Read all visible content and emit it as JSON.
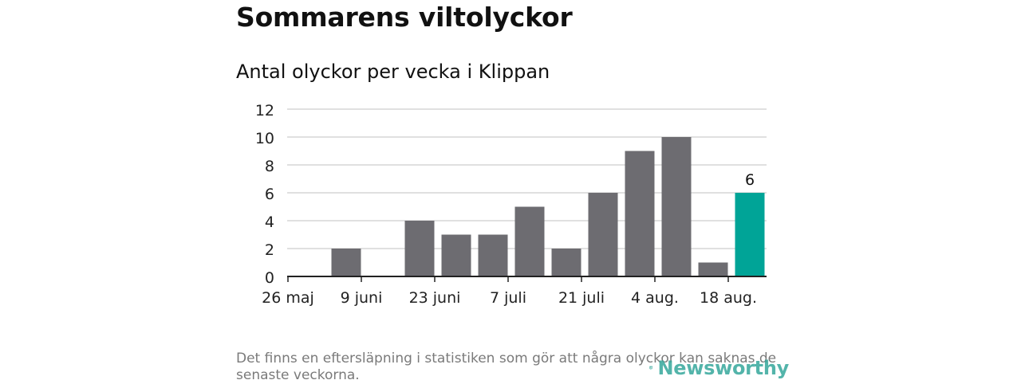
{
  "title": "Sommarens viltolyckor",
  "subtitle": "Antal olyckor per vecka i Klippan",
  "note": "Det finns en eftersläpning i statistiken som gör att några olyckor kan saknas de senaste veckorna.",
  "brand": "Newsworthy",
  "colors": {
    "bar": "#6d6c71",
    "highlight": "#00a497",
    "grid": "#d6d6d6",
    "axis": "#222222",
    "note": "#7a7a7a",
    "brand": "#36a79c"
  },
  "chart_data": {
    "type": "bar",
    "title": "Antal olyckor per vecka i Klippan",
    "xlabel": "",
    "ylabel": "",
    "ylim": [
      0,
      12
    ],
    "yticks": [
      0,
      2,
      4,
      6,
      8,
      10,
      12
    ],
    "xtick_labels": [
      "26 maj",
      "9 juni",
      "23 juni",
      "7 juli",
      "21 juli",
      "4 aug.",
      "18 aug."
    ],
    "values": [
      0,
      2,
      0,
      4,
      3,
      3,
      5,
      2,
      6,
      9,
      10,
      1,
      6
    ],
    "highlight_index": 12,
    "data_labels": [
      {
        "index": 12,
        "text": "6"
      }
    ],
    "grid": true
  }
}
